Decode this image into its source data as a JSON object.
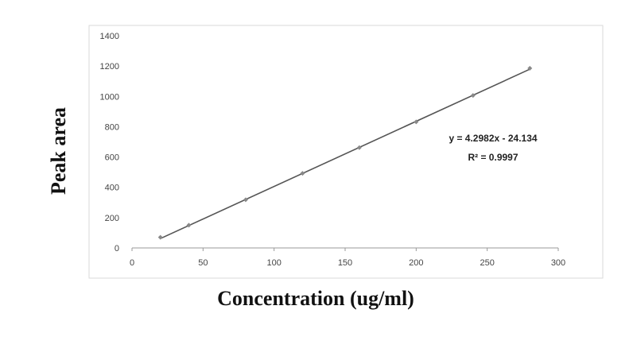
{
  "chart_data": {
    "type": "scatter",
    "xlabel": "Concentration (ug/ml)",
    "ylabel": "Peak area",
    "xlim": [
      0,
      300
    ],
    "ylim": [
      0,
      1400
    ],
    "x_ticks": [
      0,
      50,
      100,
      150,
      200,
      250,
      300
    ],
    "y_ticks": [
      0,
      200,
      400,
      600,
      800,
      1000,
      1200,
      1400
    ],
    "x_tick_labels": [
      "0",
      "50",
      "100",
      "150",
      "200",
      "250",
      "300"
    ],
    "y_tick_labels": [
      "0",
      "200",
      "400",
      "600",
      "800",
      "1000",
      "1200",
      "1400"
    ],
    "grid": false,
    "series": [
      {
        "x": [
          20,
          40,
          80,
          120,
          160,
          200,
          240,
          280
        ],
        "y": [
          70,
          150,
          318,
          492,
          662,
          832,
          1006,
          1186
        ]
      }
    ],
    "trendline": {
      "slope": 4.2982,
      "intercept": -24.134,
      "equation": "y = 4.2982x - 24.134",
      "r_squared": "R² = 0.9997"
    },
    "colors": {
      "line": "#555555",
      "marker": "#888888",
      "frame": "#d9d9d9",
      "axis": "#999999"
    }
  }
}
